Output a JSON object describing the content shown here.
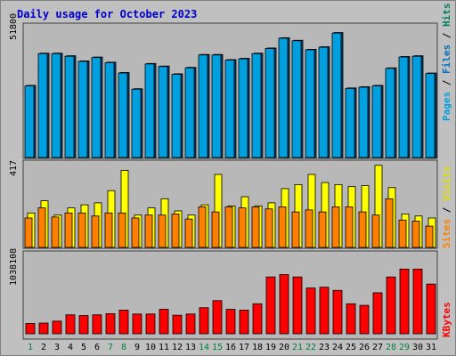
{
  "title": "Daily usage for October 2023",
  "panels": {
    "top": {
      "max_label": "51800"
    },
    "mid": {
      "max_label": "417"
    },
    "bot": {
      "max_label": "1038108"
    }
  },
  "legends": {
    "pages": "Pages",
    "files": "Files",
    "hits": "Hits",
    "sites": "Sites",
    "visits": "Visits",
    "kbytes": "KBytes",
    "sep": " / "
  },
  "colors": {
    "pages": "#00a0e0",
    "files": "#0070c0",
    "hits": "#008060",
    "sites": "#ff8000",
    "visits": "#ffff00",
    "kbytes": "#ff0000",
    "weekend": "#008040",
    "weekday": "#000000"
  },
  "chart_data": [
    {
      "type": "bar",
      "categories": [
        "1",
        "2",
        "3",
        "4",
        "5",
        "6",
        "7",
        "8",
        "9",
        "10",
        "11",
        "12",
        "13",
        "14",
        "15",
        "16",
        "17",
        "18",
        "19",
        "20",
        "21",
        "22",
        "23",
        "24",
        "25",
        "26",
        "27",
        "28",
        "29",
        "30",
        "31"
      ],
      "weekend_days": [
        "1",
        "7",
        "8",
        "14",
        "15",
        "21",
        "22",
        "28",
        "29"
      ],
      "ymax": 51800,
      "series": [
        {
          "name": "Hits",
          "values": [
            28000,
            40500,
            40500,
            39500,
            37500,
            39000,
            37000,
            33000,
            26700,
            36500,
            35500,
            32500,
            35000,
            40000,
            40000,
            38000,
            38500,
            40500,
            42500,
            46500,
            45500,
            42000,
            43000,
            48500,
            27000,
            27500,
            28000,
            34800,
            39200,
            39500,
            32800
          ]
        },
        {
          "name": "Files",
          "values": [
            27800,
            40300,
            40300,
            39300,
            37300,
            38800,
            36800,
            32800,
            26500,
            36300,
            35300,
            32300,
            34800,
            39800,
            39800,
            37800,
            38300,
            40300,
            42300,
            46300,
            45300,
            41800,
            42800,
            48300,
            26800,
            27300,
            27800,
            34600,
            39000,
            39300,
            32600
          ]
        }
      ]
    },
    {
      "type": "bar",
      "categories": [
        "1",
        "2",
        "3",
        "4",
        "5",
        "6",
        "7",
        "8",
        "9",
        "10",
        "11",
        "12",
        "13",
        "14",
        "15",
        "16",
        "17",
        "18",
        "19",
        "20",
        "21",
        "22",
        "23",
        "24",
        "25",
        "26",
        "27",
        "28",
        "29",
        "30",
        "31"
      ],
      "ymax": 417,
      "series": [
        {
          "name": "Visits",
          "values": [
            170,
            230,
            160,
            195,
            210,
            220,
            280,
            380,
            160,
            195,
            240,
            180,
            160,
            210,
            360,
            205,
            250,
            205,
            220,
            290,
            310,
            360,
            320,
            310,
            300,
            305,
            405,
            295,
            165,
            155,
            145
          ]
        },
        {
          "name": "Sites",
          "values": [
            145,
            195,
            150,
            170,
            170,
            155,
            170,
            170,
            145,
            160,
            160,
            165,
            140,
            200,
            175,
            200,
            195,
            200,
            190,
            200,
            175,
            185,
            175,
            200,
            200,
            175,
            160,
            240,
            135,
            130,
            105
          ]
        }
      ]
    },
    {
      "type": "bar",
      "categories": [
        "1",
        "2",
        "3",
        "4",
        "5",
        "6",
        "7",
        "8",
        "9",
        "10",
        "11",
        "12",
        "13",
        "14",
        "15",
        "16",
        "17",
        "18",
        "19",
        "20",
        "21",
        "22",
        "23",
        "24",
        "25",
        "26",
        "27",
        "28",
        "29",
        "30",
        "31"
      ],
      "ymax": 1038108,
      "series": [
        {
          "name": "KBytes",
          "values": [
            130000,
            135000,
            160000,
            240000,
            230000,
            240000,
            255000,
            300000,
            250000,
            250000,
            310000,
            235000,
            250000,
            330000,
            420000,
            310000,
            300000,
            380000,
            720000,
            750000,
            720000,
            580000,
            590000,
            550000,
            380000,
            360000,
            520000,
            720000,
            820000,
            820000,
            630000
          ]
        }
      ]
    }
  ]
}
